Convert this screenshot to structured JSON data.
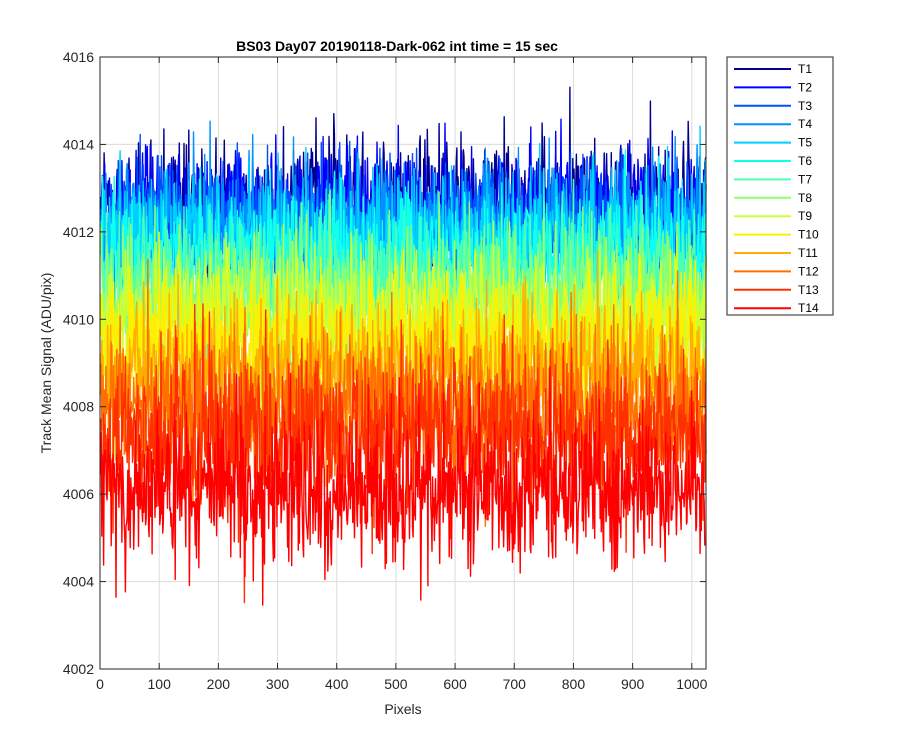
{
  "chart_data": {
    "type": "line",
    "title": "BS03 Day07 20190118-Dark-062 int time = 15 sec",
    "xlabel": "Pixels",
    "ylabel": "Track Mean Signal (ADU/pix)",
    "xlim": [
      0,
      1024
    ],
    "ylim": [
      4002,
      4016
    ],
    "xticks": [
      0,
      100,
      200,
      300,
      400,
      500,
      600,
      700,
      800,
      900,
      1000
    ],
    "yticks": [
      4002,
      4004,
      4006,
      4008,
      4010,
      4012,
      4014,
      4016
    ],
    "grid": true,
    "legend_location": "outside-right-top",
    "series": [
      {
        "name": "T1",
        "color": "#00008f",
        "mean": 4012.6,
        "spread": 0.75
      },
      {
        "name": "T2",
        "color": "#0000ff",
        "mean": 4012.5,
        "spread": 0.75
      },
      {
        "name": "T3",
        "color": "#0050ff",
        "mean": 4012.2,
        "spread": 0.75
      },
      {
        "name": "T4",
        "color": "#0090ff",
        "mean": 4012.0,
        "spread": 0.75
      },
      {
        "name": "T5",
        "color": "#00cfff",
        "mean": 4011.9,
        "spread": 0.75
      },
      {
        "name": "T6",
        "color": "#10ffef",
        "mean": 4011.4,
        "spread": 0.75
      },
      {
        "name": "T7",
        "color": "#50ffaf",
        "mean": 4010.9,
        "spread": 0.75
      },
      {
        "name": "T8",
        "color": "#8fff70",
        "mean": 4010.4,
        "spread": 0.8
      },
      {
        "name": "T9",
        "color": "#cfff30",
        "mean": 4010.0,
        "spread": 0.8
      },
      {
        "name": "T10",
        "color": "#ffef00",
        "mean": 4009.5,
        "spread": 0.8
      },
      {
        "name": "T11",
        "color": "#ffaf00",
        "mean": 4008.8,
        "spread": 0.8
      },
      {
        "name": "T12",
        "color": "#ff7000",
        "mean": 4008.0,
        "spread": 0.85
      },
      {
        "name": "T13",
        "color": "#ff3000",
        "mean": 4007.4,
        "spread": 0.9
      },
      {
        "name": "T14",
        "color": "#ff0000",
        "mean": 4006.1,
        "spread": 0.85
      }
    ]
  }
}
